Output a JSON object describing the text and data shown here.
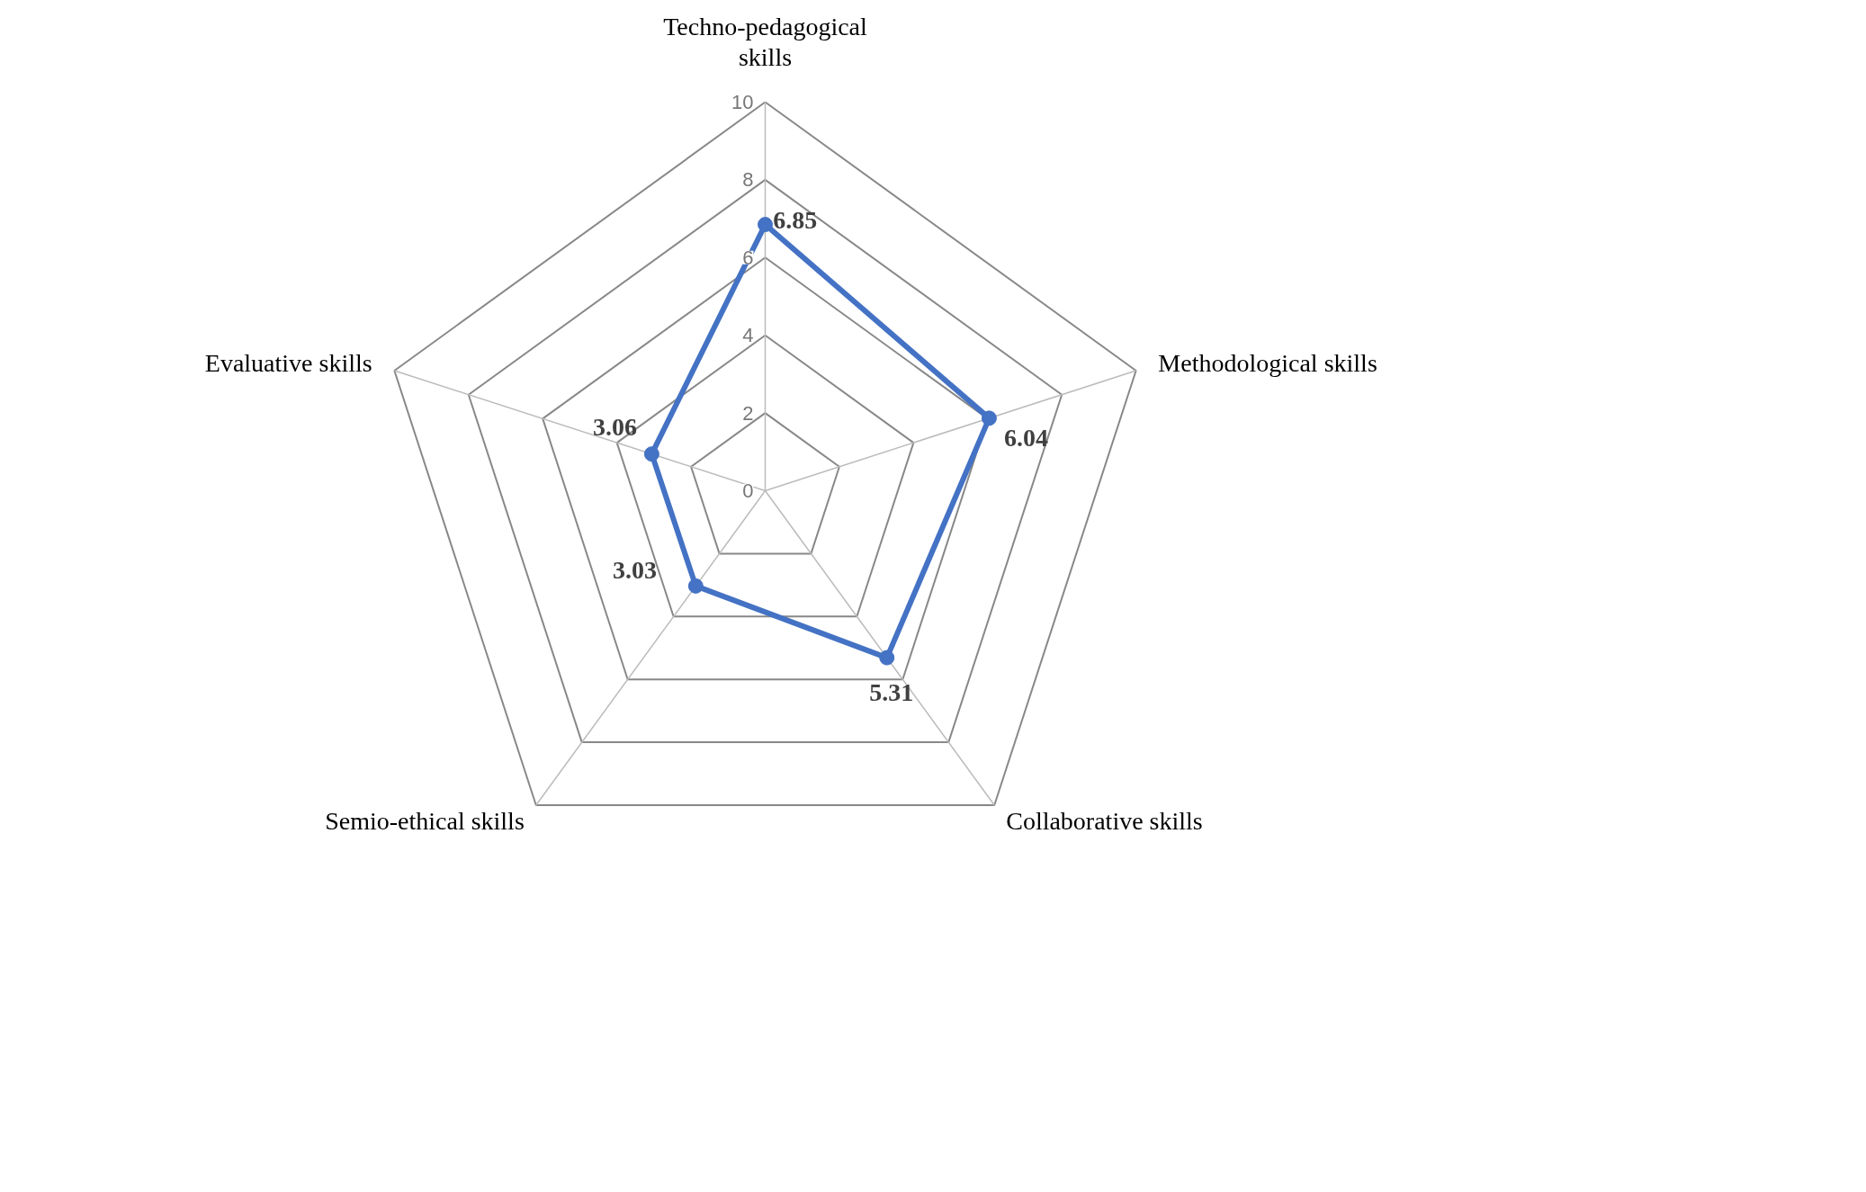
{
  "chart_data": {
    "type": "radar",
    "categories": [
      "Techno-pedagogical skills",
      "Methodological skills",
      "Collaborative skills",
      "Semio-ethical skills",
      "Evaluative skills"
    ],
    "series": [
      {
        "color": "#4472c4",
        "values": [
          6.85,
          6.04,
          5.31,
          3.03,
          3.06
        ]
      }
    ],
    "ylim": [
      0,
      10
    ],
    "yticks": [
      0,
      2,
      4,
      6,
      8,
      10
    ],
    "grid": true,
    "data_labels": true,
    "marker": "circle",
    "line_style": "solid"
  }
}
